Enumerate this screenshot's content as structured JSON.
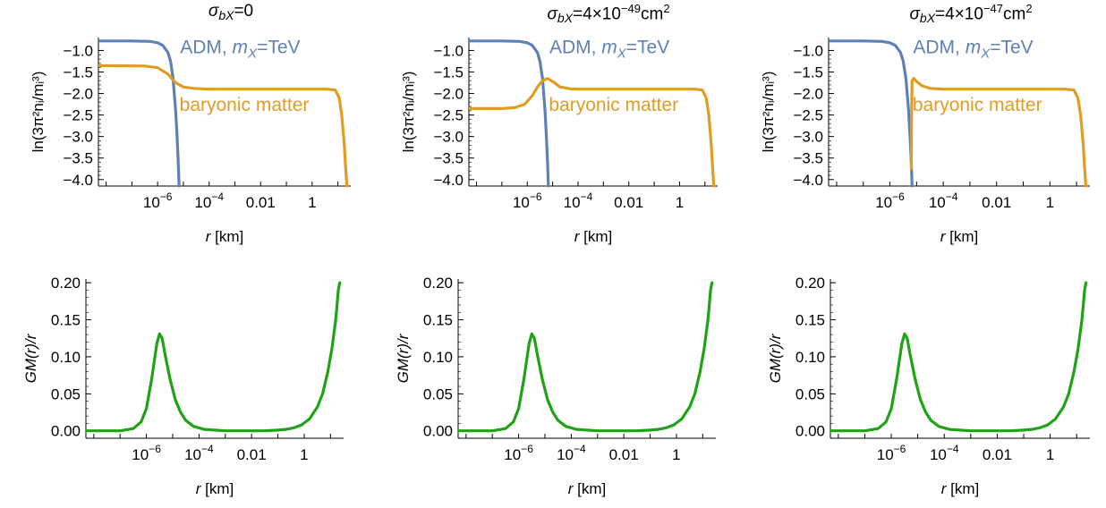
{
  "titles": {
    "p1": {
      "sym": "σ",
      "sub": "bX",
      "rest": "=0"
    },
    "p2": {
      "sym": "σ",
      "sub": "bX",
      "rest": "=4×10",
      "exp": "−49",
      "unit": "cm",
      "unit_exp": "2"
    },
    "p3": {
      "sym": "σ",
      "sub": "bX",
      "rest": "=4×10",
      "exp": "−47",
      "unit": "cm",
      "unit_exp": "2"
    }
  },
  "labels": {
    "adm": "ADM, ",
    "mx_sym": "m",
    "mx_sub": "X",
    "mx_rest": "=TeV",
    "baryonic": "baryonic matter",
    "xlabel_var": "r",
    "xlabel_unit": " [km]",
    "ylabel_top": "ln(3π²nᵢ/mᵢ³)",
    "ylabel_bottom": "GM(r)/r"
  },
  "colors": {
    "adm": "#5e81b5",
    "baryonic": "#e19c24",
    "metric": "#1ea316",
    "axis": "#000000"
  },
  "chart_data": [
    {
      "type": "line",
      "panel": "top-1",
      "x_scale": "log10",
      "xlim": [
        -8.3,
        1.5
      ],
      "ylim": [
        -4.15,
        -0.7
      ],
      "yticks": [
        "-1.0",
        "-1.5",
        "-2.0",
        "-2.5",
        "-3.0",
        "-3.5",
        "-4.0"
      ],
      "xticks": [
        {
          "exp": -6,
          "label": "10⁻⁶"
        },
        {
          "exp": -4,
          "label": "10⁻⁴"
        },
        {
          "exp": -2,
          "label": "0.01"
        },
        {
          "exp": 0,
          "label": "1"
        }
      ],
      "series": [
        {
          "name": "ADM, mX=TeV",
          "color": "adm",
          "x": [
            -8.3,
            -7.0,
            -6.3,
            -6.0,
            -5.8,
            -5.6,
            -5.5,
            -5.4,
            -5.3,
            -5.25,
            -5.2,
            -5.17
          ],
          "y": [
            -0.78,
            -0.78,
            -0.79,
            -0.82,
            -0.88,
            -1.05,
            -1.25,
            -1.65,
            -2.4,
            -2.95,
            -3.6,
            -4.15
          ]
        },
        {
          "name": "baryonic matter",
          "color": "baryonic",
          "x": [
            -8.3,
            -6.5,
            -6.0,
            -5.6,
            -5.3,
            -5.0,
            -4.6,
            -4.0,
            -2.0,
            0.0,
            0.6,
            0.9,
            1.05,
            1.15,
            1.25,
            1.3,
            1.35
          ],
          "y": [
            -1.35,
            -1.36,
            -1.4,
            -1.55,
            -1.75,
            -1.85,
            -1.88,
            -1.9,
            -1.9,
            -1.9,
            -1.9,
            -1.92,
            -2.1,
            -2.5,
            -3.2,
            -3.7,
            -4.15
          ]
        }
      ]
    },
    {
      "type": "line",
      "panel": "top-2",
      "x_scale": "log10",
      "xlim": [
        -8.3,
        1.5
      ],
      "ylim": [
        -4.15,
        -0.7
      ],
      "yticks": [
        "-1.0",
        "-1.5",
        "-2.0",
        "-2.5",
        "-3.0",
        "-3.5",
        "-4.0"
      ],
      "xticks": [
        {
          "exp": -6,
          "label": "10⁻⁶"
        },
        {
          "exp": -4,
          "label": "10⁻⁴"
        },
        {
          "exp": -2,
          "label": "0.01"
        },
        {
          "exp": 0,
          "label": "1"
        }
      ],
      "series": [
        {
          "name": "ADM, mX=TeV",
          "color": "adm",
          "x": [
            -8.3,
            -7.0,
            -6.3,
            -6.0,
            -5.8,
            -5.6,
            -5.5,
            -5.4,
            -5.3,
            -5.25,
            -5.2,
            -5.17
          ],
          "y": [
            -0.78,
            -0.78,
            -0.79,
            -0.82,
            -0.88,
            -1.05,
            -1.25,
            -1.65,
            -2.4,
            -2.95,
            -3.6,
            -4.15
          ]
        },
        {
          "name": "baryonic matter",
          "color": "baryonic",
          "x": [
            -8.3,
            -7.0,
            -6.5,
            -6.1,
            -5.8,
            -5.6,
            -5.4,
            -5.2,
            -5.0,
            -4.7,
            -4.3,
            -4.0,
            -2.0,
            0.0,
            0.6,
            0.9,
            1.05,
            1.15,
            1.25,
            1.3,
            1.35
          ],
          "y": [
            -2.35,
            -2.35,
            -2.33,
            -2.25,
            -2.05,
            -1.85,
            -1.7,
            -1.65,
            -1.72,
            -1.85,
            -1.89,
            -1.9,
            -1.9,
            -1.9,
            -1.9,
            -1.92,
            -2.1,
            -2.5,
            -3.2,
            -3.7,
            -4.15
          ]
        }
      ]
    },
    {
      "type": "line",
      "panel": "top-3",
      "x_scale": "log10",
      "xlim": [
        -8.3,
        1.5
      ],
      "ylim": [
        -4.15,
        -0.7
      ],
      "yticks": [
        "-1.0",
        "-1.5",
        "-2.0",
        "-2.5",
        "-3.0",
        "-3.5",
        "-4.0"
      ],
      "xticks": [
        {
          "exp": -6,
          "label": "10⁻⁶"
        },
        {
          "exp": -4,
          "label": "10⁻⁴"
        },
        {
          "exp": -2,
          "label": "0.01"
        },
        {
          "exp": 0,
          "label": "1"
        }
      ],
      "series": [
        {
          "name": "ADM, mX=TeV",
          "color": "adm",
          "x": [
            -8.3,
            -7.0,
            -6.3,
            -6.0,
            -5.8,
            -5.6,
            -5.5,
            -5.4,
            -5.3,
            -5.25,
            -5.2,
            -5.17
          ],
          "y": [
            -0.78,
            -0.78,
            -0.79,
            -0.82,
            -0.88,
            -1.05,
            -1.25,
            -1.65,
            -2.4,
            -2.95,
            -3.6,
            -4.15
          ]
        },
        {
          "name": "baryonic matter",
          "color": "baryonic",
          "x": [
            -5.2,
            -5.19,
            -5.17,
            -5.1,
            -5.0,
            -4.8,
            -4.5,
            -4.0,
            -2.0,
            0.0,
            0.6,
            0.9,
            1.05,
            1.15,
            1.25,
            1.3,
            1.35
          ],
          "y": [
            -3.75,
            -2.5,
            -1.7,
            -1.65,
            -1.72,
            -1.82,
            -1.88,
            -1.9,
            -1.9,
            -1.9,
            -1.9,
            -1.92,
            -2.1,
            -2.5,
            -3.2,
            -3.7,
            -4.15
          ]
        }
      ]
    },
    {
      "type": "line",
      "panel": "bottom-1",
      "x_scale": "log10",
      "xlim": [
        -8.3,
        1.5
      ],
      "ylim": [
        -0.01,
        0.205
      ],
      "yticks": [
        "0.00",
        "0.05",
        "0.10",
        "0.15",
        "0.20"
      ],
      "xticks": [
        {
          "exp": -6,
          "label": "10⁻⁶"
        },
        {
          "exp": -4,
          "label": "10⁻⁴"
        },
        {
          "exp": -2,
          "label": "0.01"
        },
        {
          "exp": 0,
          "label": "1"
        }
      ],
      "series": [
        {
          "name": "GM(r)/r",
          "color": "metric",
          "x": [
            -8.3,
            -7.0,
            -6.5,
            -6.2,
            -6.0,
            -5.8,
            -5.6,
            -5.5,
            -5.4,
            -5.3,
            -5.1,
            -4.9,
            -4.7,
            -4.5,
            -4.2,
            -3.8,
            -3.0,
            -2.0,
            -1.5,
            -1.0,
            -0.7,
            -0.4,
            -0.1,
            0.2,
            0.5,
            0.7,
            0.9,
            1.05,
            1.2,
            1.3,
            1.35
          ],
          "y": [
            0.0,
            0.0,
            0.003,
            0.012,
            0.03,
            0.07,
            0.118,
            0.131,
            0.125,
            0.105,
            0.07,
            0.042,
            0.025,
            0.014,
            0.006,
            0.002,
            0.0,
            0.0,
            0.0,
            0.001,
            0.002,
            0.004,
            0.008,
            0.016,
            0.032,
            0.05,
            0.08,
            0.11,
            0.15,
            0.19,
            0.2
          ]
        }
      ]
    },
    {
      "type": "line",
      "panel": "bottom-2",
      "x_scale": "log10",
      "xlim": [
        -8.3,
        1.5
      ],
      "ylim": [
        -0.01,
        0.205
      ],
      "yticks": [
        "0.00",
        "0.05",
        "0.10",
        "0.15",
        "0.20"
      ],
      "xticks": [
        {
          "exp": -6,
          "label": "10⁻⁶"
        },
        {
          "exp": -4,
          "label": "10⁻⁴"
        },
        {
          "exp": -2,
          "label": "0.01"
        },
        {
          "exp": 0,
          "label": "1"
        }
      ],
      "series": [
        {
          "name": "GM(r)/r",
          "color": "metric",
          "x": [
            -8.3,
            -7.0,
            -6.5,
            -6.2,
            -6.0,
            -5.8,
            -5.6,
            -5.5,
            -5.4,
            -5.3,
            -5.1,
            -4.9,
            -4.7,
            -4.5,
            -4.2,
            -3.8,
            -3.0,
            -2.0,
            -1.5,
            -1.0,
            -0.7,
            -0.4,
            -0.1,
            0.2,
            0.5,
            0.7,
            0.9,
            1.05,
            1.2,
            1.3,
            1.35
          ],
          "y": [
            0.0,
            0.0,
            0.003,
            0.012,
            0.03,
            0.07,
            0.118,
            0.131,
            0.125,
            0.105,
            0.07,
            0.042,
            0.025,
            0.014,
            0.006,
            0.002,
            0.0,
            0.0,
            0.0,
            0.001,
            0.002,
            0.004,
            0.008,
            0.016,
            0.032,
            0.05,
            0.08,
            0.11,
            0.15,
            0.19,
            0.2
          ]
        }
      ]
    },
    {
      "type": "line",
      "panel": "bottom-3",
      "x_scale": "log10",
      "xlim": [
        -8.3,
        1.5
      ],
      "ylim": [
        -0.01,
        0.205
      ],
      "yticks": [
        "0.00",
        "0.05",
        "0.10",
        "0.15",
        "0.20"
      ],
      "xticks": [
        {
          "exp": -6,
          "label": "10⁻⁶"
        },
        {
          "exp": -4,
          "label": "10⁻⁴"
        },
        {
          "exp": -2,
          "label": "0.01"
        },
        {
          "exp": 0,
          "label": "1"
        }
      ],
      "series": [
        {
          "name": "GM(r)/r",
          "color": "metric",
          "x": [
            -8.3,
            -7.0,
            -6.5,
            -6.2,
            -6.0,
            -5.8,
            -5.6,
            -5.5,
            -5.4,
            -5.3,
            -5.1,
            -4.9,
            -4.7,
            -4.5,
            -4.2,
            -3.8,
            -3.0,
            -2.0,
            -1.5,
            -1.0,
            -0.7,
            -0.4,
            -0.1,
            0.2,
            0.5,
            0.7,
            0.9,
            1.05,
            1.2,
            1.3,
            1.35
          ],
          "y": [
            0.0,
            0.0,
            0.003,
            0.012,
            0.03,
            0.07,
            0.118,
            0.131,
            0.125,
            0.105,
            0.07,
            0.042,
            0.025,
            0.014,
            0.006,
            0.002,
            0.0,
            0.0,
            0.0,
            0.001,
            0.002,
            0.004,
            0.008,
            0.016,
            0.032,
            0.05,
            0.08,
            0.11,
            0.15,
            0.19,
            0.2
          ]
        }
      ]
    }
  ]
}
